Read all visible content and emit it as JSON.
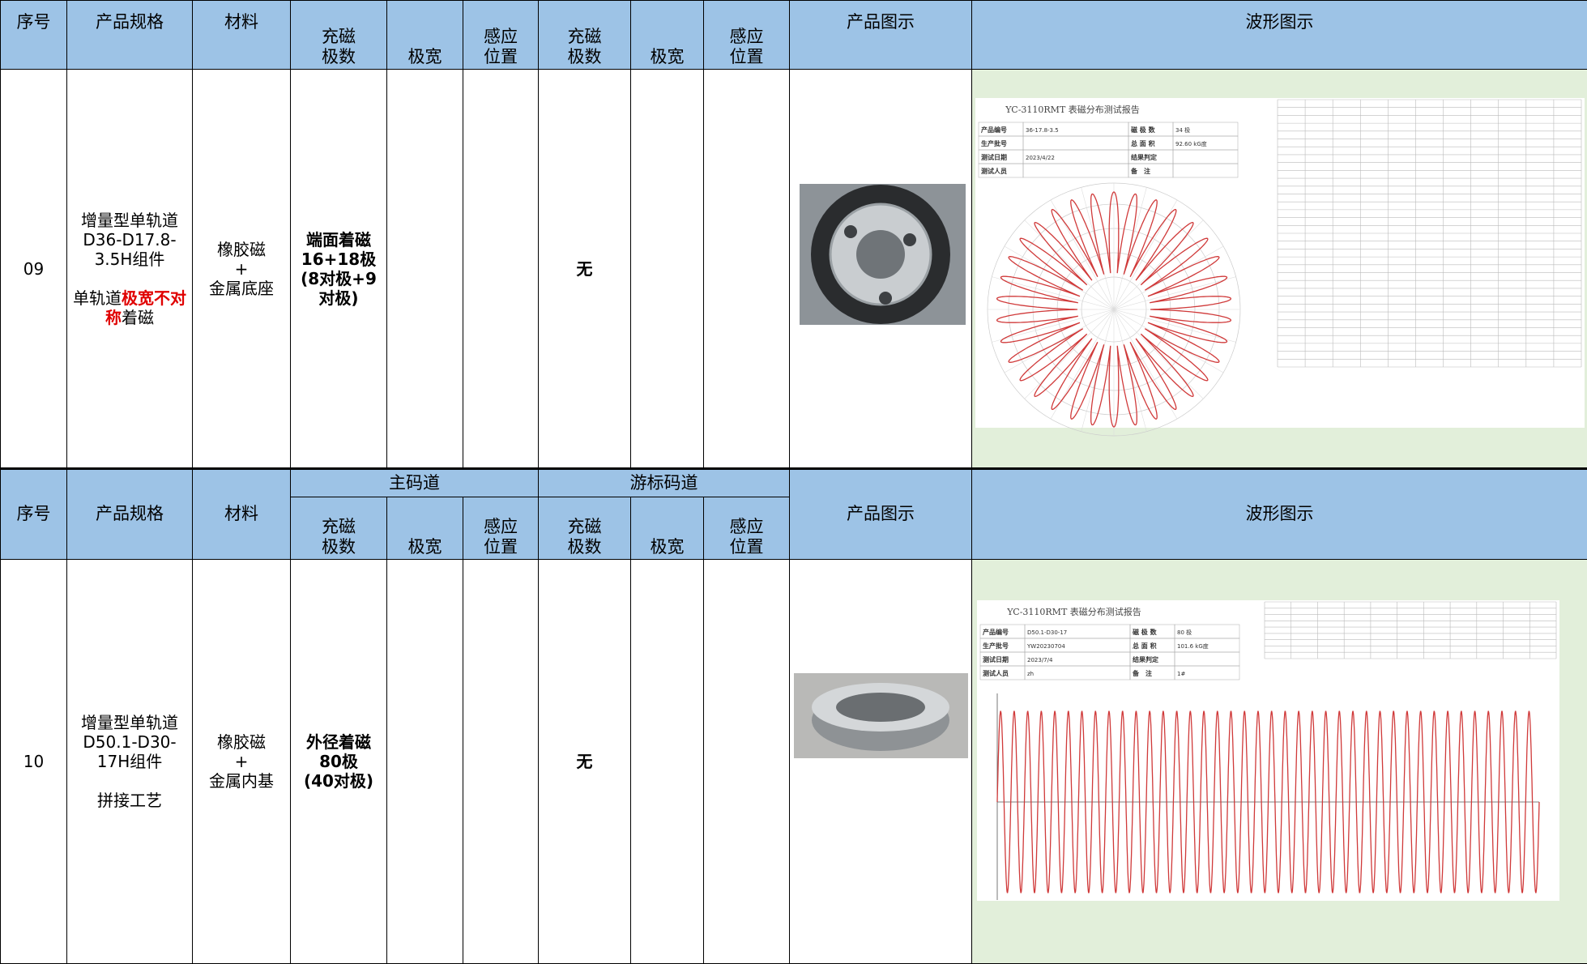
{
  "sections": [
    {
      "header": {
        "columns": [
          "序号",
          "产品规格",
          "材料",
          "充磁\n极数",
          "极宽",
          "感应\n位置",
          "充磁\n极数",
          "极宽",
          "感应\n位置",
          "产品图示",
          "波形图示"
        ]
      },
      "row": {
        "no": "09",
        "spec": {
          "model": "增量型单轨道\nD36-D17.8-\n3.5H组件",
          "note": [
            "单轨道",
            "极宽不对称",
            "着磁"
          ]
        },
        "material": "橡胶磁\n+\n金属底座",
        "main_poles": "端面着磁\n16+18极\n(8对极+9\n对极)",
        "vernier": "无"
      },
      "report": {
        "title": "YC-3110RMT  表磁分布测试报告",
        "fields": [
          [
            "产品编号",
            "36-17.8-3.5",
            "磁 极 数",
            "34 极"
          ],
          [
            "生产批号",
            null,
            "总 面 积",
            "92.60 kG度"
          ],
          [
            "测试日期",
            "2023/4/22",
            "结果判定",
            null
          ],
          [
            "测试人员",
            null,
            "备　注",
            null
          ]
        ]
      }
    },
    {
      "header": {
        "groups": [
          "主码道",
          "游标码道"
        ],
        "columns": [
          "序号",
          "产品规格",
          "材料",
          "充磁\n极数",
          "极宽",
          "感应\n位置",
          "充磁\n极数",
          "极宽",
          "感应\n位置",
          "产品图示",
          "波形图示"
        ]
      },
      "row": {
        "no": "10",
        "spec": {
          "model": "增量型单轨道\nD50.1-D30-\n17H组件",
          "note": [
            "拼接工艺"
          ]
        },
        "material": "橡胶磁\n+\n金属内基",
        "main_poles": "外径着磁\n80极\n(40对极)",
        "vernier": "无"
      },
      "report": {
        "title": "YC-3110RMT  表磁分布测试报告",
        "fields": [
          [
            "产品编号",
            "D50.1-D30-17",
            "磁 极 数",
            "80 极"
          ],
          [
            "生产批号",
            "YW20230704",
            "总 面 积",
            "101.6 kG度"
          ],
          [
            "测试日期",
            "2023/7/4",
            "结果判定",
            null
          ],
          [
            "测试人员",
            "zh",
            "备　注",
            "1#"
          ]
        ]
      }
    }
  ]
}
